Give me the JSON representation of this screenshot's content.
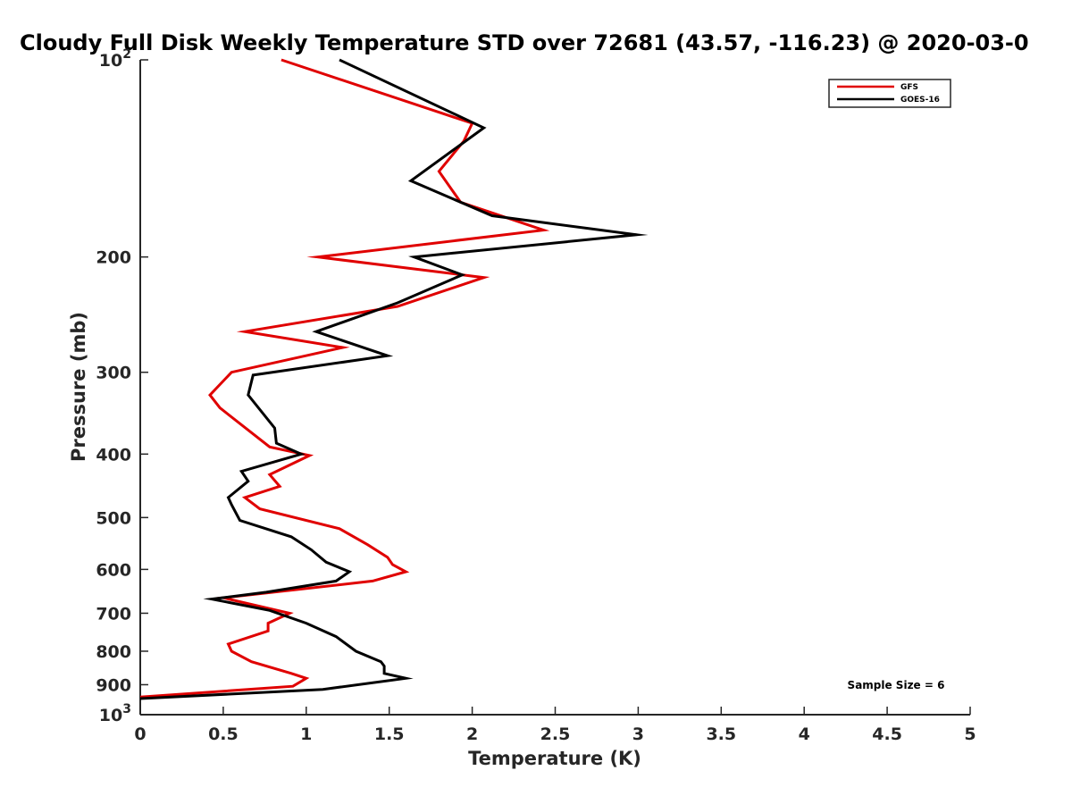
{
  "chart_data": {
    "type": "line",
    "title": "Cloudy Full Disk Weekly Temperature STD over 72681 (43.57, -116.23) @ 2020-03-0",
    "xlabel": "Temperature (K)",
    "ylabel": "Pressure (mb)",
    "xlim": [
      0,
      5
    ],
    "ylim": [
      100,
      1000
    ],
    "yscale": "log",
    "y_reversed": true,
    "x_ticks": [
      "0",
      "0.5",
      "1",
      "1.5",
      "2",
      "2.5",
      "3",
      "3.5",
      "4",
      "4.5",
      "5"
    ],
    "y_ticks": [
      {
        "value": 100,
        "base": "10",
        "exp": "2"
      },
      {
        "value": 200,
        "label": "200"
      },
      {
        "value": 300,
        "label": "300"
      },
      {
        "value": 400,
        "label": "400"
      },
      {
        "value": 500,
        "label": "500"
      },
      {
        "value": 600,
        "label": "600"
      },
      {
        "value": 700,
        "label": "700"
      },
      {
        "value": 800,
        "label": "800"
      },
      {
        "value": 900,
        "label": "900"
      },
      {
        "value": 1000,
        "base": "10",
        "exp": "3"
      }
    ],
    "legend_position": "top-right",
    "annotation": "Sample Size = 6",
    "series": [
      {
        "name": "GFS",
        "color": "#e00000",
        "points": [
          [
            0.85,
            100
          ],
          [
            2.0,
            125
          ],
          [
            1.95,
            133
          ],
          [
            1.8,
            148
          ],
          [
            1.93,
            165
          ],
          [
            2.43,
            182
          ],
          [
            1.07,
            200
          ],
          [
            2.07,
            215
          ],
          [
            1.55,
            238
          ],
          [
            0.63,
            260
          ],
          [
            1.22,
            275
          ],
          [
            0.55,
            300
          ],
          [
            0.42,
            325
          ],
          [
            0.48,
            340
          ],
          [
            0.78,
            390
          ],
          [
            1.02,
            402
          ],
          [
            0.78,
            430
          ],
          [
            0.84,
            448
          ],
          [
            0.63,
            466
          ],
          [
            0.72,
            485
          ],
          [
            1.2,
            520
          ],
          [
            1.37,
            550
          ],
          [
            1.49,
            575
          ],
          [
            1.52,
            590
          ],
          [
            1.6,
            605
          ],
          [
            1.4,
            625
          ],
          [
            0.5,
            663
          ],
          [
            0.9,
            700
          ],
          [
            0.77,
            725
          ],
          [
            0.77,
            745
          ],
          [
            0.53,
            780
          ],
          [
            0.55,
            800
          ],
          [
            0.67,
            830
          ],
          [
            0.91,
            865
          ],
          [
            1.0,
            880
          ],
          [
            0.92,
            905
          ],
          [
            0.0,
            940
          ]
        ]
      },
      {
        "name": "GOES-16",
        "color": "#000000",
        "points": [
          [
            1.2,
            100
          ],
          [
            2.07,
            127
          ],
          [
            1.63,
            153
          ],
          [
            2.12,
            173
          ],
          [
            2.99,
            185
          ],
          [
            1.65,
            200
          ],
          [
            1.94,
            213
          ],
          [
            1.55,
            235
          ],
          [
            1.06,
            260
          ],
          [
            1.49,
            283
          ],
          [
            0.68,
            303
          ],
          [
            0.65,
            325
          ],
          [
            0.81,
            365
          ],
          [
            0.82,
            385
          ],
          [
            0.97,
            400
          ],
          [
            0.61,
            425
          ],
          [
            0.65,
            440
          ],
          [
            0.53,
            466
          ],
          [
            0.55,
            478
          ],
          [
            0.6,
            505
          ],
          [
            0.91,
            535
          ],
          [
            1.03,
            560
          ],
          [
            1.12,
            585
          ],
          [
            1.26,
            605
          ],
          [
            1.18,
            625
          ],
          [
            0.76,
            650
          ],
          [
            0.43,
            666
          ],
          [
            0.78,
            693
          ],
          [
            1.0,
            725
          ],
          [
            1.18,
            760
          ],
          [
            1.3,
            800
          ],
          [
            1.45,
            830
          ],
          [
            1.47,
            843
          ],
          [
            1.47,
            865
          ],
          [
            1.6,
            880
          ],
          [
            1.1,
            915
          ],
          [
            0.0,
            945
          ]
        ]
      }
    ]
  }
}
